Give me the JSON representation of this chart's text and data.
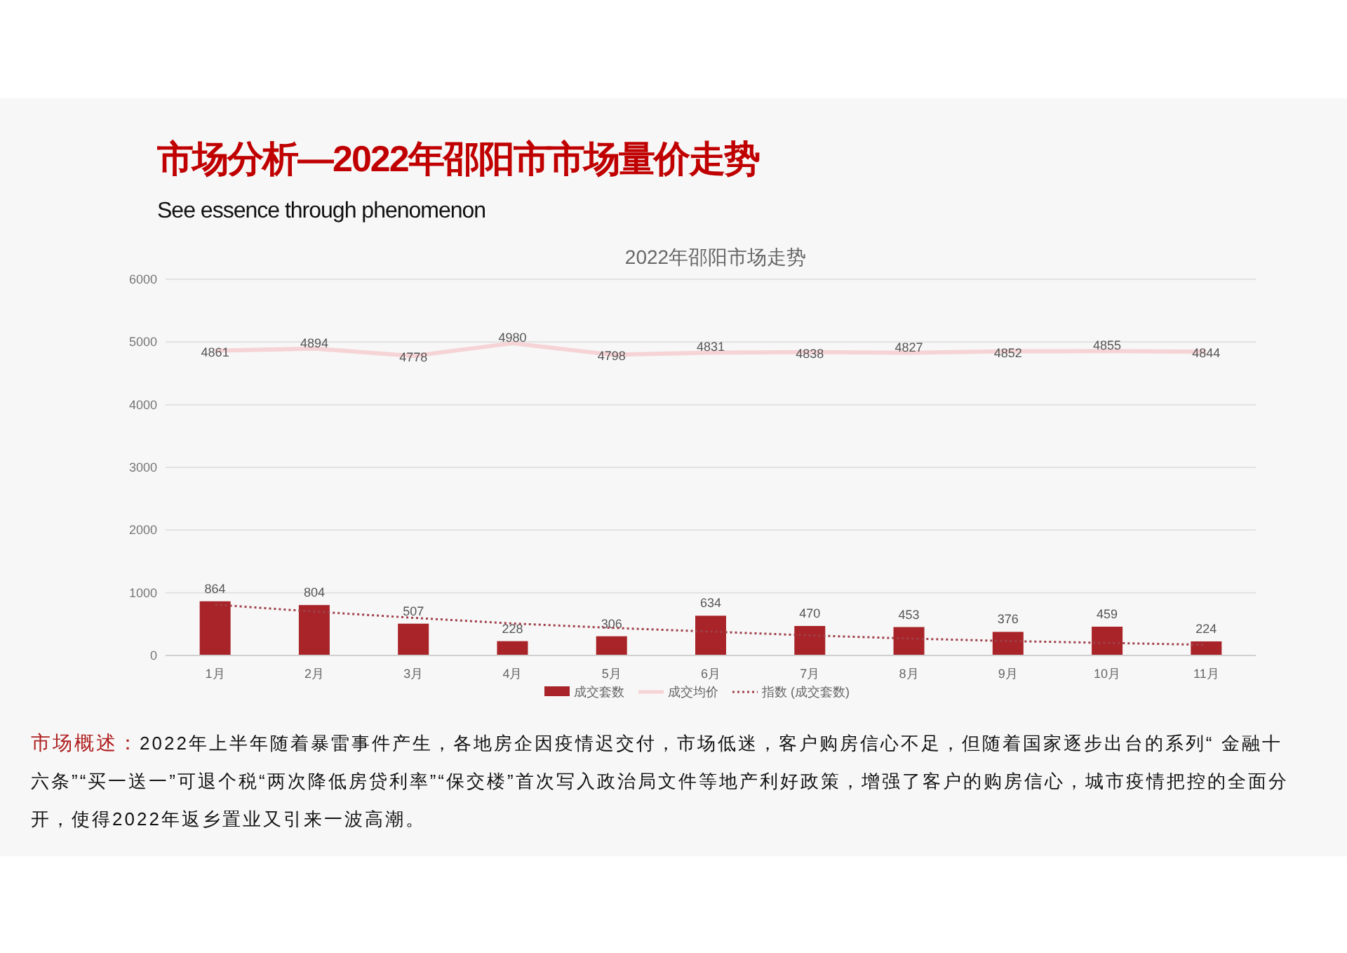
{
  "chart_data": {
    "type": "bar",
    "title": "市场分析—2022年邵阳市市场量价走势",
    "subtitle": "See essence through phenomenon",
    "annotations": [
      "2022年邵阳市场走势",
      "市场概述：",
      "2022年上半年随着暴雷事件产生，各地房企因疫情迟交付，市场低迷，客户购房信心不足，但随着国家逐步出台的系列“ 金融十六条”“买一送一”可退个税“两次降低房贷利率”“保交楼”首次写入政治局文件等地产利好政策，增强了客户的购房信心，城市疫情把控的全面分开，使得2022年返乡置业又引来一波高潮。"
    ],
    "categories": [
      "1月",
      "2月",
      "3月",
      "4月",
      "5月",
      "6月",
      "7月",
      "8月",
      "9月",
      "10月",
      "11月"
    ],
    "series": [
      {
        "name": "成交套数",
        "color": "#a82428",
        "values": [
          864,
          804,
          507,
          228,
          306,
          634,
          470,
          453,
          376,
          459,
          224
        ],
        "value_labels": [
          "864",
          "804",
          "507",
          "228",
          "306",
          "634",
          "470",
          "453",
          "376",
          "459",
          "224"
        ]
      },
      {
        "name": "成交均价",
        "type": "line",
        "color": "#f6d4d6",
        "values": [
          4861,
          4894,
          4778,
          4980,
          4798,
          4831,
          4838,
          4827,
          4852,
          4855,
          4844
        ],
        "value_labels": [
          "4861",
          "4894",
          "4778",
          "4980",
          "4798",
          "4831",
          "4838",
          "4827",
          "4852",
          "4855",
          "4844"
        ]
      },
      {
        "name": "指数 (成交套数)",
        "type": "line",
        "line_style": "dotted",
        "color": "#a0404a",
        "values": [
          810,
          700,
          600,
          510,
          440,
          380,
          320,
          270,
          230,
          200,
          170
        ]
      }
    ],
    "ylim": [
      0,
      6000
    ],
    "yticks": [
      0,
      1000,
      2000,
      3000,
      4000,
      5000,
      6000
    ],
    "grid": "y",
    "legend": "bottom"
  }
}
